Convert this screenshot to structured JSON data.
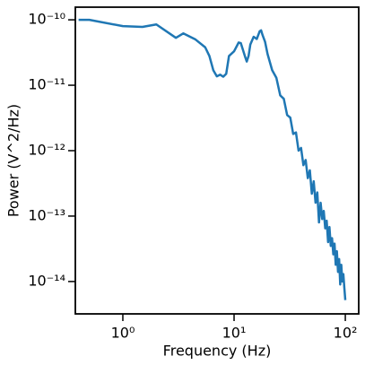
{
  "chart_data": {
    "type": "line",
    "xlabel": "Frequency (Hz)",
    "ylabel": "Power (V^2/Hz)",
    "xscale": "log",
    "yscale": "log",
    "xlim": [
      0.374,
      132
    ],
    "ylim": [
      3.2e-15,
      1.56e-10
    ],
    "xticks": [
      {
        "value": 1,
        "label": "10⁰"
      },
      {
        "value": 10,
        "label": "10¹"
      },
      {
        "value": 100,
        "label": "10²"
      }
    ],
    "yticks": [
      {
        "value": 1e-14,
        "label": "10⁻¹⁴"
      },
      {
        "value": 1e-13,
        "label": "10⁻¹³"
      },
      {
        "value": 1e-12,
        "label": "10⁻¹²"
      },
      {
        "value": 1e-11,
        "label": "10⁻¹¹"
      },
      {
        "value": 1e-10,
        "label": "10⁻¹⁰"
      }
    ],
    "x": [
      0.4,
      0.5,
      1.0,
      1.5,
      2.0,
      3.0,
      3.5,
      4.5,
      5.5,
      6.0,
      6.5,
      7.0,
      7.5,
      8.0,
      8.5,
      9.0,
      10.0,
      11.0,
      11.5,
      12.0,
      12.5,
      13.0,
      13.5,
      14.0,
      15.0,
      16.0,
      17.0,
      17.5,
      18.0,
      19.0,
      20,
      22,
      24,
      26,
      28,
      30,
      32,
      34,
      36,
      38,
      40,
      42,
      44,
      46,
      48,
      50,
      52,
      54,
      56,
      58,
      60,
      62,
      64,
      66,
      68,
      70,
      72,
      74,
      76,
      78,
      80,
      82,
      84,
      86,
      88,
      90,
      92,
      94,
      96,
      98,
      100
    ],
    "series": [
      {
        "color": "#1f77b4",
        "values": [
          1e-10,
          1e-10,
          8e-11,
          7.8e-11,
          8.5e-11,
          5.3e-11,
          6.2e-11,
          5e-11,
          3.8e-11,
          2.8e-11,
          1.7e-11,
          1.37e-11,
          1.45e-11,
          1.35e-11,
          1.5e-11,
          2.8e-11,
          3.3e-11,
          4.5e-11,
          4.4e-11,
          3.5e-11,
          2.8e-11,
          2.3e-11,
          2.8e-11,
          4.2e-11,
          5.5e-11,
          5.1e-11,
          6.7e-11,
          6.9e-11,
          5.9e-11,
          4.6e-11,
          3e-11,
          1.7e-11,
          1.3e-11,
          7e-12,
          6.2e-12,
          3.5e-12,
          3.2e-12,
          1.8e-12,
          1.9e-12,
          1e-12,
          1.1e-12,
          6e-13,
          7.2e-13,
          3.8e-13,
          5e-13,
          2.2e-13,
          3.4e-13,
          1.6e-13,
          2.3e-13,
          8e-14,
          1.6e-13,
          9e-14,
          1.2e-13,
          6.5e-14,
          8.5e-14,
          4e-14,
          6.8e-14,
          3.5e-14,
          4.6e-14,
          2.6e-14,
          3.8e-14,
          1.8e-14,
          2.9e-14,
          1.4e-14,
          2.2e-14,
          9e-15,
          1.8e-14,
          1e-14,
          1.3e-14,
          8e-15,
          5.2e-15
        ]
      }
    ]
  }
}
